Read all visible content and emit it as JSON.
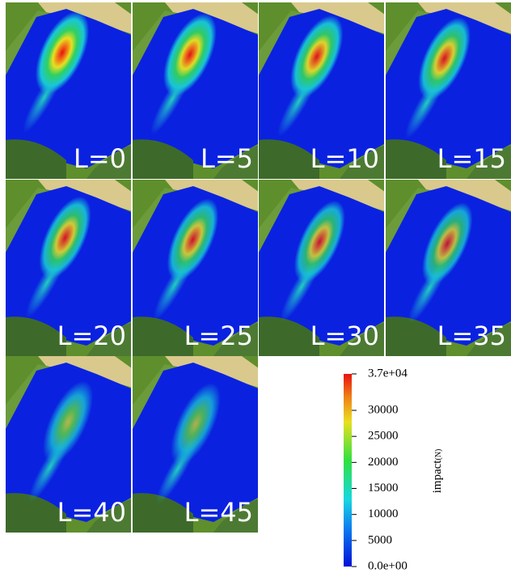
{
  "panels": [
    {
      "label": "L=0"
    },
    {
      "label": "L=5"
    },
    {
      "label": "L=10"
    },
    {
      "label": "L=15"
    },
    {
      "label": "L=20"
    },
    {
      "label": "L=25"
    },
    {
      "label": "L=30"
    },
    {
      "label": "L=35"
    },
    {
      "label": "L=40"
    },
    {
      "label": "L=45"
    }
  ],
  "colorbar": {
    "title": "impact",
    "unit": "(N)",
    "lim": [
      0,
      37000
    ],
    "ticks": [
      {
        "value": 37000,
        "label": "3.7e+04"
      },
      30000,
      25000,
      20000,
      15000,
      10000,
      5000,
      {
        "value": 0,
        "label": "0.0e+00"
      }
    ]
  }
}
